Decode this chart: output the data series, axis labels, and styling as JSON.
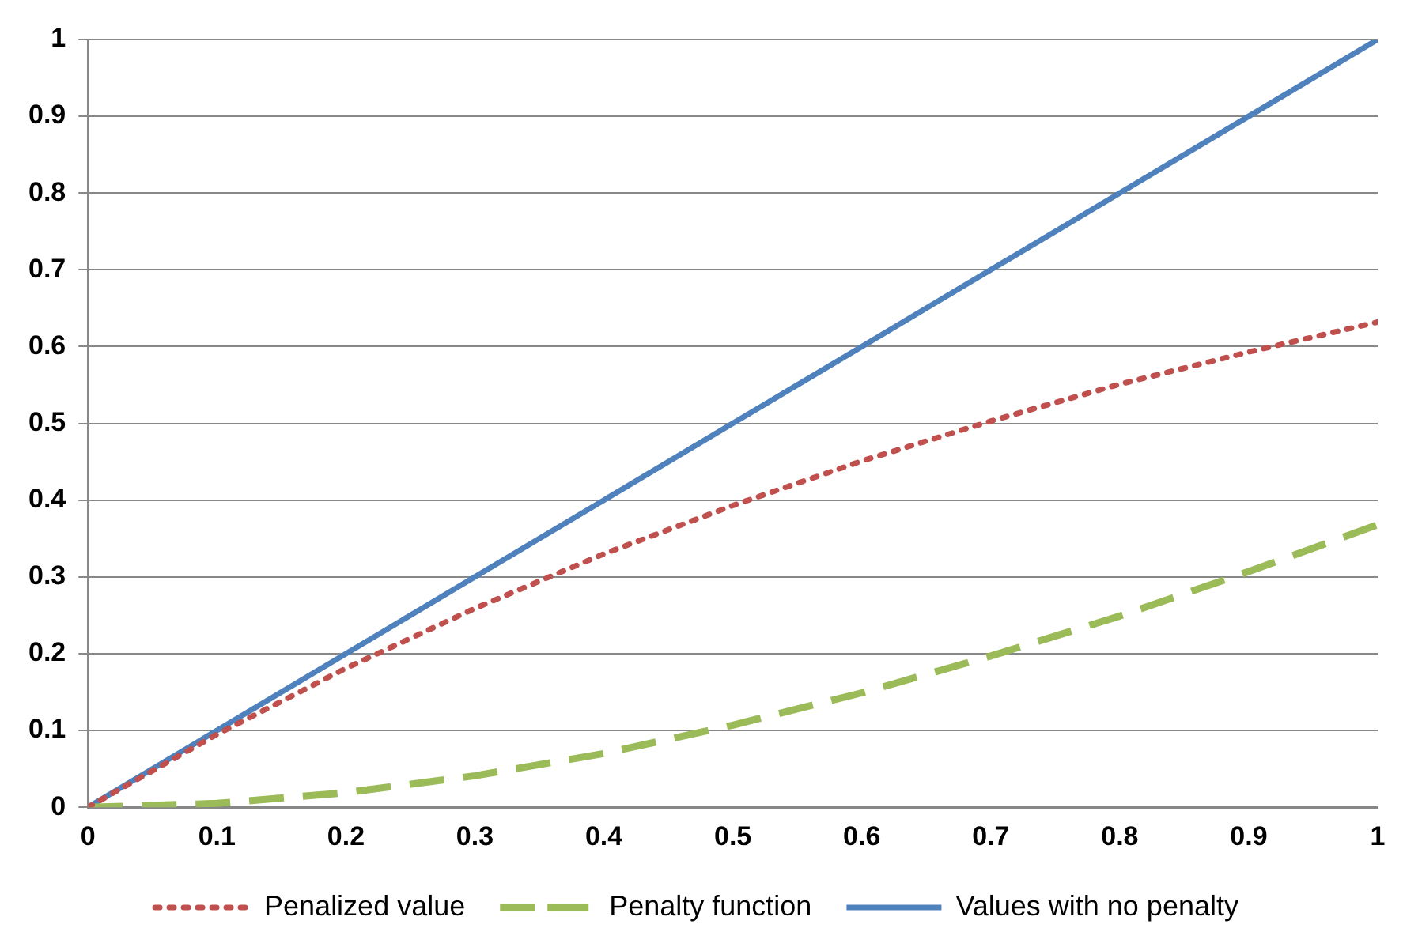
{
  "chart_data": {
    "type": "line",
    "x": [
      0,
      0.1,
      0.2,
      0.3,
      0.4,
      0.5,
      0.6,
      0.7,
      0.8,
      0.9,
      1
    ],
    "series": [
      {
        "name": "Penalized value",
        "color": "#c0504d",
        "line_style": "dotted",
        "values": [
          0,
          0.095,
          0.181,
          0.259,
          0.33,
          0.393,
          0.451,
          0.503,
          0.551,
          0.593,
          0.632
        ]
      },
      {
        "name": "Penalty function",
        "color": "#9bbb59",
        "line_style": "dashed",
        "values": [
          0,
          0.005,
          0.019,
          0.041,
          0.07,
          0.107,
          0.149,
          0.197,
          0.249,
          0.307,
          0.368
        ]
      },
      {
        "name": "Values with no penalty",
        "color": "#4f81bd",
        "line_style": "solid",
        "values": [
          0,
          0.1,
          0.2,
          0.3,
          0.4,
          0.5,
          0.6,
          0.7,
          0.8,
          0.9,
          1
        ]
      }
    ],
    "xlim": [
      0,
      1
    ],
    "xticks": [
      0,
      0.1,
      0.2,
      0.3,
      0.4,
      0.5,
      0.6,
      0.7,
      0.8,
      0.9,
      1
    ],
    "ylim": [
      0,
      1
    ],
    "yticks": [
      0,
      0.1,
      0.2,
      0.3,
      0.4,
      0.5,
      0.6,
      0.7,
      0.8,
      0.9,
      1
    ],
    "grid": "y",
    "legend": "bottom",
    "marker": "none"
  }
}
